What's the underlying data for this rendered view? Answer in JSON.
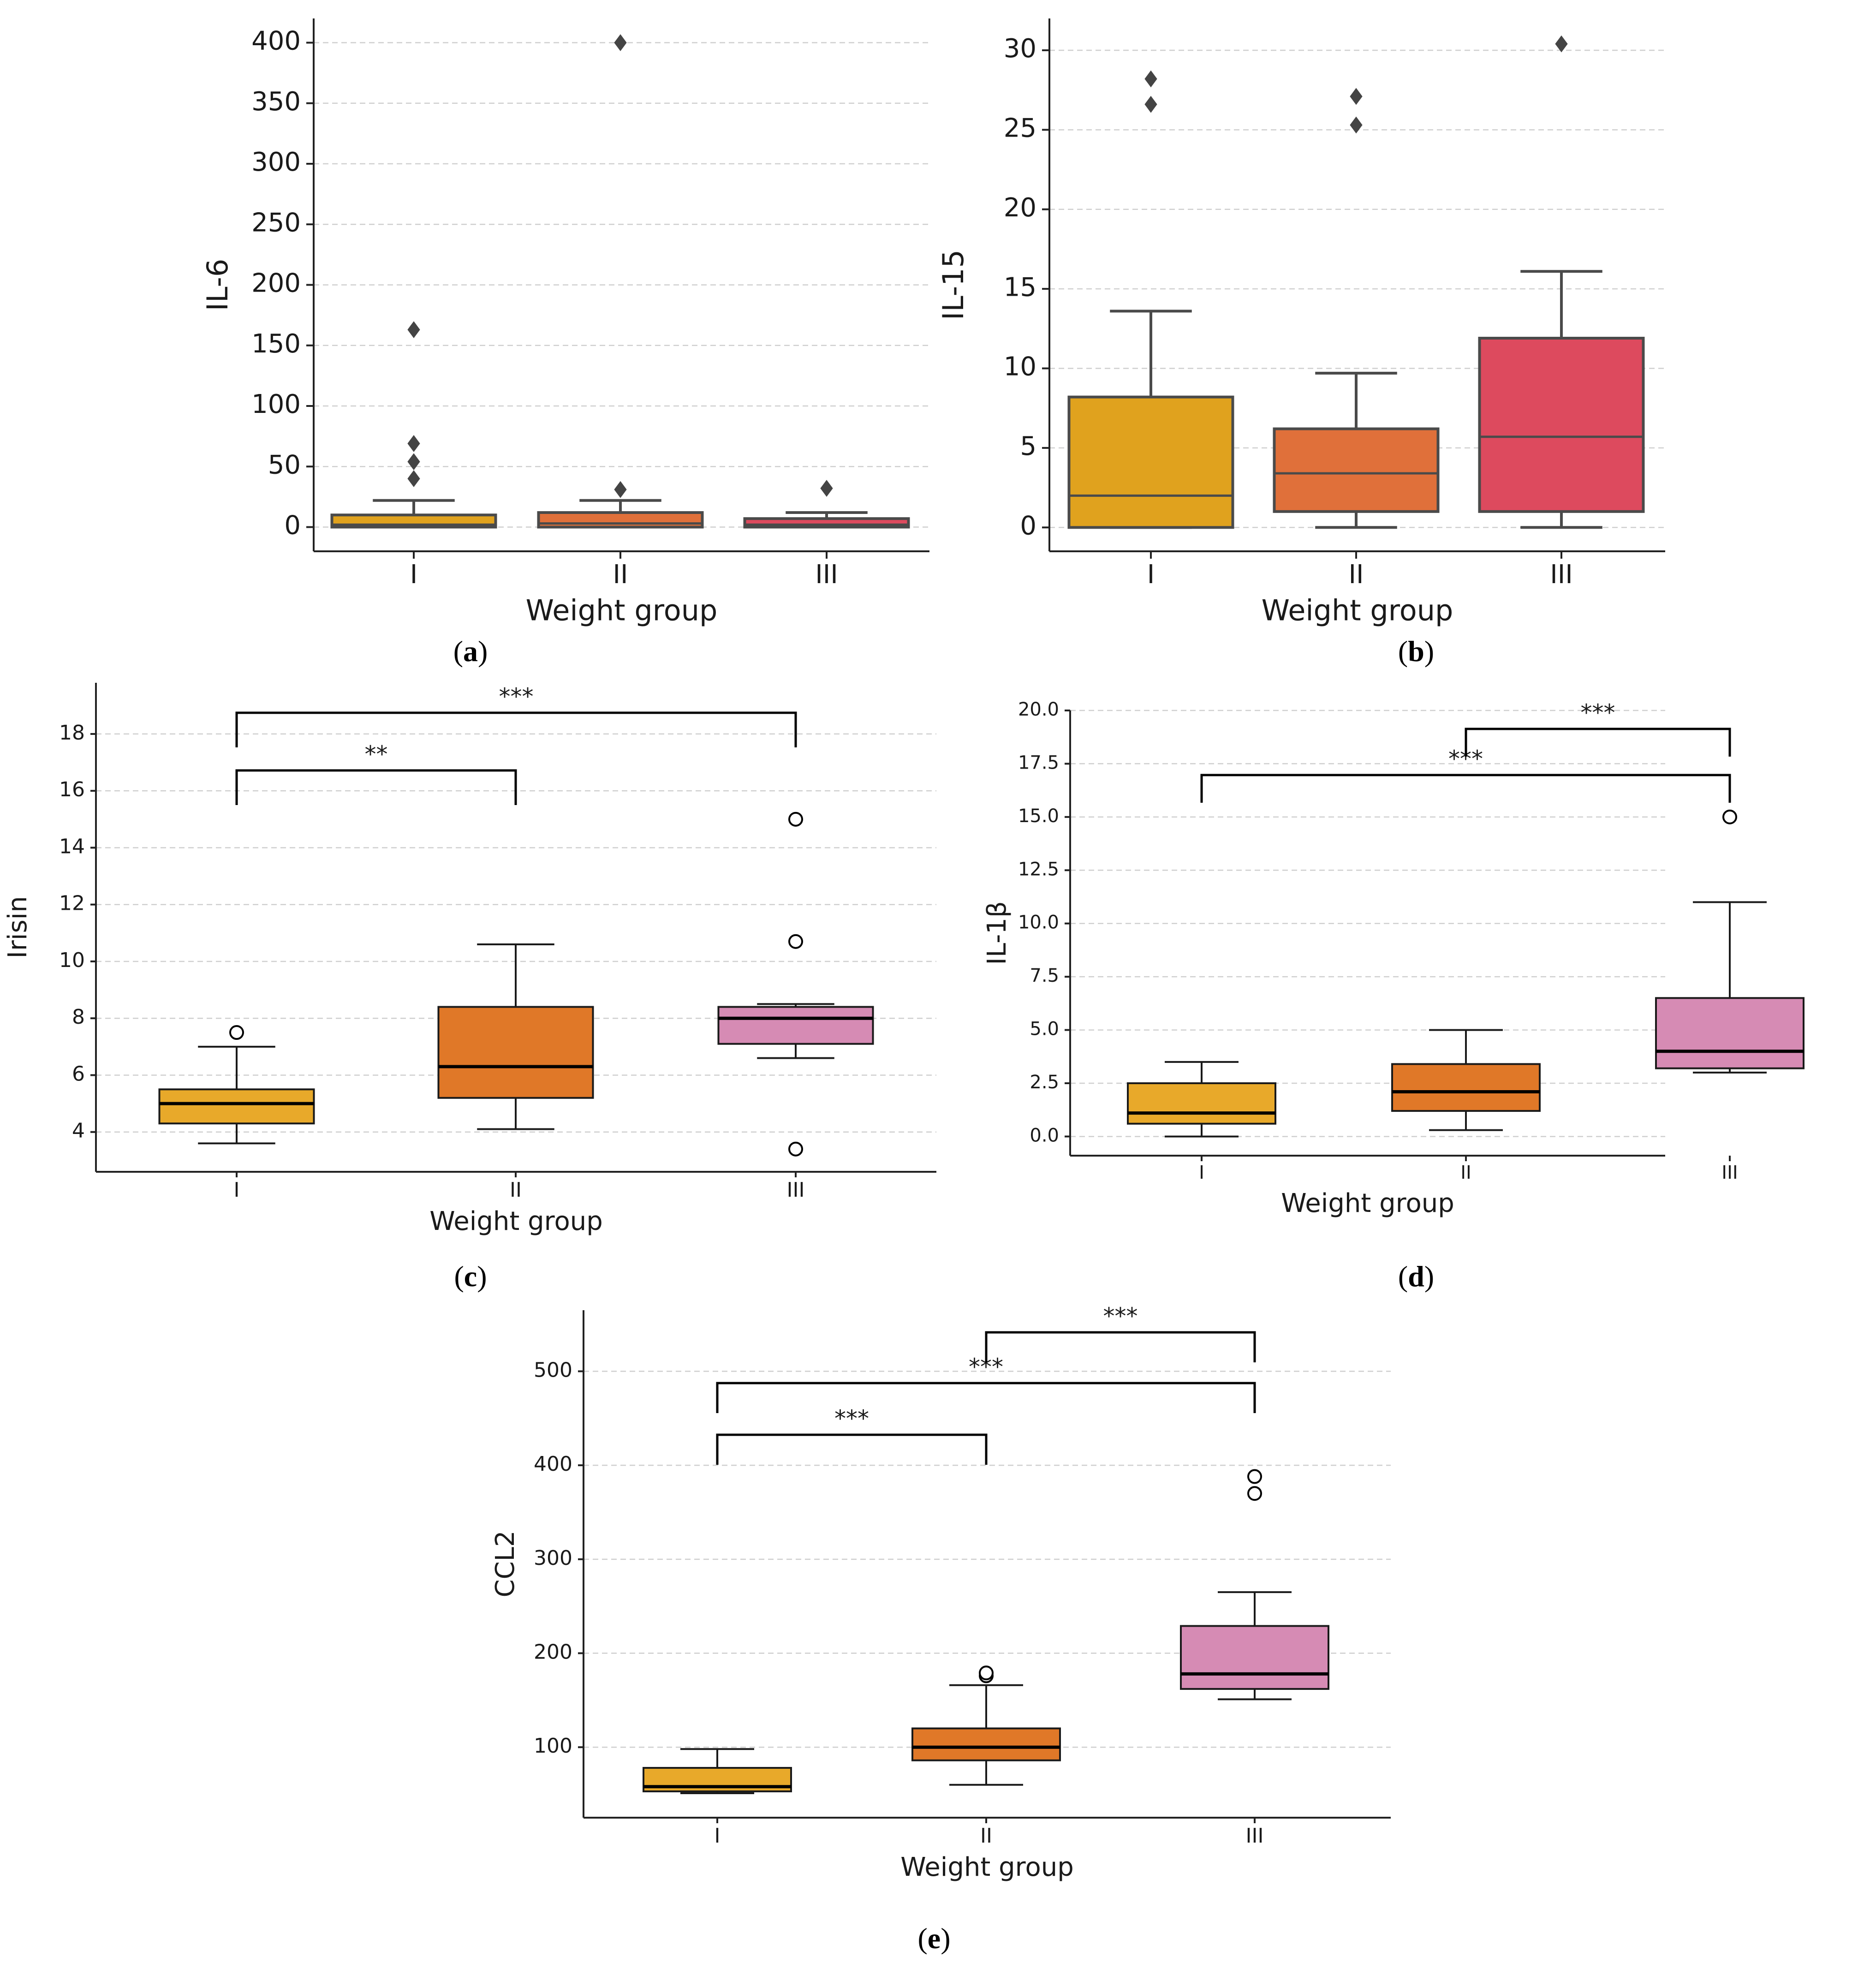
{
  "chart_data": [
    {
      "id": "a",
      "type": "box",
      "panel_label": "a",
      "xlabel": "Weight group",
      "ylabel": "IL-6",
      "categories": [
        "I",
        "II",
        "III"
      ],
      "colors": [
        "#e0a21e",
        "#e0703a",
        "#dd4a5e"
      ],
      "ylim": [
        -20,
        420
      ],
      "yticks": [
        0,
        50,
        100,
        150,
        200,
        250,
        300,
        350,
        400
      ],
      "yticklabels": [
        "0",
        "50",
        "100",
        "150",
        "200",
        "250",
        "300",
        "350",
        "400"
      ],
      "grid": "horizontal",
      "boxes": [
        {
          "whisker_low": 0,
          "q1": 0,
          "median": 2,
          "q3": 10,
          "whisker_high": 22,
          "outliers": [
            40,
            54,
            69,
            163
          ]
        },
        {
          "whisker_low": 0,
          "q1": 0,
          "median": 3,
          "q3": 12,
          "whisker_high": 22,
          "outliers": [
            31,
            400
          ]
        },
        {
          "whisker_low": 0,
          "q1": 0,
          "median": 2,
          "q3": 7,
          "whisker_high": 12,
          "outliers": [
            32
          ]
        }
      ],
      "significance": []
    },
    {
      "id": "b",
      "type": "box",
      "panel_label": "b",
      "xlabel": "Weight group",
      "ylabel": "IL-15",
      "categories": [
        "I",
        "II",
        "III"
      ],
      "colors": [
        "#e0a21e",
        "#e0703a",
        "#dd4a5e"
      ],
      "ylim": [
        -1.5,
        32
      ],
      "yticks": [
        0,
        5,
        10,
        15,
        20,
        25,
        30
      ],
      "yticklabels": [
        "0",
        "5",
        "10",
        "15",
        "20",
        "25",
        "30"
      ],
      "grid": "horizontal",
      "boxes": [
        {
          "whisker_low": 0,
          "q1": 0,
          "median": 2,
          "q3": 8.2,
          "whisker_high": 13.6,
          "outliers": [
            26.6,
            28.2
          ]
        },
        {
          "whisker_low": 0,
          "q1": 1,
          "median": 3.4,
          "q3": 6.2,
          "whisker_high": 9.7,
          "outliers": [
            25.3,
            27.1
          ]
        },
        {
          "whisker_low": 0,
          "q1": 1,
          "median": 5.7,
          "q3": 11.9,
          "whisker_high": 16.1,
          "outliers": [
            30.4
          ]
        }
      ],
      "significance": []
    },
    {
      "id": "c",
      "type": "box",
      "panel_label": "c",
      "xlabel": "Weight group",
      "ylabel": "Irisin",
      "categories": [
        "I",
        "II",
        "III"
      ],
      "colors": [
        "#e8a92a",
        "#e07828",
        "#d68bb4"
      ],
      "ylim": [
        2.6,
        19.8
      ],
      "yticks": [
        4,
        6,
        8,
        10,
        12,
        14,
        16,
        18
      ],
      "yticklabels": [
        "4",
        "6",
        "8",
        "10",
        "12",
        "14",
        "16",
        "18"
      ],
      "grid": "horizontal",
      "boxes": [
        {
          "whisker_low": 3.6,
          "q1": 4.3,
          "median": 5.0,
          "q3": 5.5,
          "whisker_high": 7.0,
          "outliers": [
            7.5
          ]
        },
        {
          "whisker_low": 4.1,
          "q1": 5.2,
          "median": 6.3,
          "q3": 8.4,
          "whisker_high": 10.6,
          "outliers": []
        },
        {
          "whisker_low": 6.6,
          "q1": 7.1,
          "median": 8.0,
          "q3": 8.4,
          "whisker_high": 8.5,
          "outliers": [
            3.4,
            10.7,
            15.0
          ]
        }
      ],
      "significance": [
        {
          "from": 0,
          "to": 1,
          "label": "**"
        },
        {
          "from": 0,
          "to": 2,
          "label": "***"
        }
      ]
    },
    {
      "id": "d",
      "type": "box",
      "panel_label": "d",
      "xlabel": "Weight group",
      "ylabel": "IL-1β",
      "categories": [
        "I",
        "II",
        "III"
      ],
      "colors": [
        "#e8a92a",
        "#e07828",
        "#d68bb4"
      ],
      "ylim": [
        -0.9,
        20.0
      ],
      "yticks": [
        0,
        2.5,
        5,
        7.5,
        10,
        12.5,
        15,
        17.5,
        20
      ],
      "yticklabels": [
        "0.0",
        "2.5",
        "5.0",
        "7.5",
        "10.0",
        "12.5",
        "15.0",
        "17.5",
        "20.0"
      ],
      "grid": "horizontal",
      "boxes": [
        {
          "whisker_low": 0,
          "q1": 0.6,
          "median": 1.1,
          "q3": 2.5,
          "whisker_high": 3.5,
          "outliers": []
        },
        {
          "whisker_low": 0.3,
          "q1": 1.2,
          "median": 2.1,
          "q3": 3.4,
          "whisker_high": 5.0,
          "outliers": []
        },
        {
          "whisker_low": 3.0,
          "q1": 3.2,
          "median": 4.0,
          "q3": 6.5,
          "whisker_high": 11.0,
          "outliers": [
            15.0
          ]
        }
      ],
      "significance": [
        {
          "from": 0,
          "to": 2,
          "label": "***"
        },
        {
          "from": 1,
          "to": 2,
          "label": "***"
        }
      ]
    },
    {
      "id": "e",
      "type": "box",
      "panel_label": "e",
      "xlabel": "Weight group",
      "ylabel": "CCL2",
      "categories": [
        "I",
        "II",
        "III"
      ],
      "colors": [
        "#e8a92a",
        "#e07828",
        "#d68bb4"
      ],
      "ylim": [
        25,
        565
      ],
      "yticks": [
        100,
        200,
        300,
        400,
        500
      ],
      "yticklabels": [
        "100",
        "200",
        "300",
        "400",
        "500"
      ],
      "grid": "horizontal",
      "boxes": [
        {
          "whisker_low": 51,
          "q1": 53,
          "median": 58,
          "q3": 78,
          "whisker_high": 98,
          "outliers": []
        },
        {
          "whisker_low": 60,
          "q1": 86,
          "median": 100,
          "q3": 120,
          "whisker_high": 166,
          "outliers": [
            176,
            179
          ]
        },
        {
          "whisker_low": 151,
          "q1": 162,
          "median": 178,
          "q3": 229,
          "whisker_high": 265,
          "outliers": [
            370,
            388
          ]
        }
      ],
      "significance": [
        {
          "from": 0,
          "to": 1,
          "label": "***"
        },
        {
          "from": 0,
          "to": 2,
          "label": "***"
        },
        {
          "from": 1,
          "to": 2,
          "label": "***"
        }
      ]
    }
  ]
}
